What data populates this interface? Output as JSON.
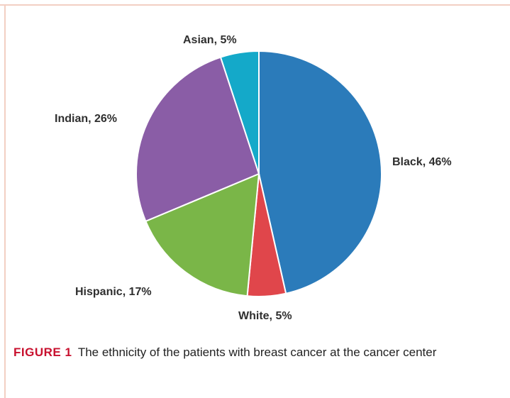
{
  "figure": {
    "caption_tag": "FIGURE 1",
    "caption_text": "The ethnicity of the patients with breast cancer at the cancer center"
  },
  "chart_data": {
    "type": "pie",
    "title": "",
    "start_angle_deg": 0,
    "direction": "clockwise",
    "slices": [
      {
        "name": "Black",
        "value": 46,
        "label": "Black, 46%",
        "color": "#2b7bba"
      },
      {
        "name": "White",
        "value": 5,
        "label": "White, 5%",
        "color": "#e0464b"
      },
      {
        "name": "Hispanic",
        "value": 17,
        "label": "Hispanic, 17%",
        "color": "#7ab648"
      },
      {
        "name": "Indian",
        "value": 26,
        "label": "Indian, 26%",
        "color": "#8a5da6"
      },
      {
        "name": "Asian",
        "value": 5,
        "label": "Asian, 5%",
        "color": "#14a9c9"
      }
    ]
  }
}
